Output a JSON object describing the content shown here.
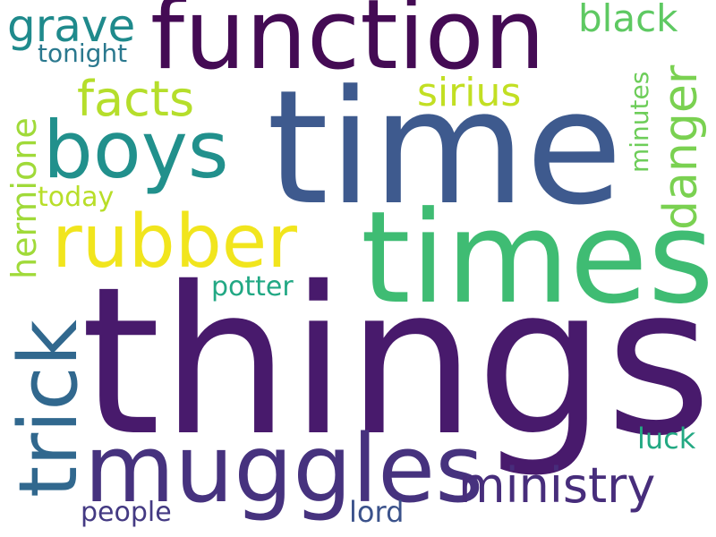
{
  "words": {
    "things": {
      "text": "things",
      "color": "#481A6C"
    },
    "time": {
      "text": "time",
      "color": "#3E5A8E"
    },
    "times": {
      "text": "times",
      "color": "#3FBC73"
    },
    "function": {
      "text": "function",
      "color": "#440B54"
    },
    "muggles": {
      "text": "muggles",
      "color": "#46327E"
    },
    "boys": {
      "text": "boys",
      "color": "#21908C"
    },
    "rubber": {
      "text": "rubber",
      "color": "#F1E51D"
    },
    "trick": {
      "text": "trick",
      "color": "#31688E"
    },
    "ministry": {
      "text": "ministry",
      "color": "#472D7B"
    },
    "facts": {
      "text": "facts",
      "color": "#B5DE2B"
    },
    "grave": {
      "text": "grave",
      "color": "#1F8A8C"
    },
    "black": {
      "text": "black",
      "color": "#5EC962"
    },
    "sirius": {
      "text": "sirius",
      "color": "#C2DF23"
    },
    "danger": {
      "text": "danger",
      "color": "#7AD151"
    },
    "hermione": {
      "text": "hermione",
      "color": "#A0DA39"
    },
    "minutes": {
      "text": "minutes",
      "color": "#6DCD59"
    },
    "potter": {
      "text": "potter",
      "color": "#22A884"
    },
    "tonight": {
      "text": "tonight",
      "color": "#2A788E"
    },
    "today": {
      "text": "today",
      "color": "#B8DE29"
    },
    "luck": {
      "text": "luck",
      "color": "#23A983"
    },
    "lord": {
      "text": "lord",
      "color": "#3B528B"
    },
    "people": {
      "text": "people",
      "color": "#443A83"
    }
  }
}
